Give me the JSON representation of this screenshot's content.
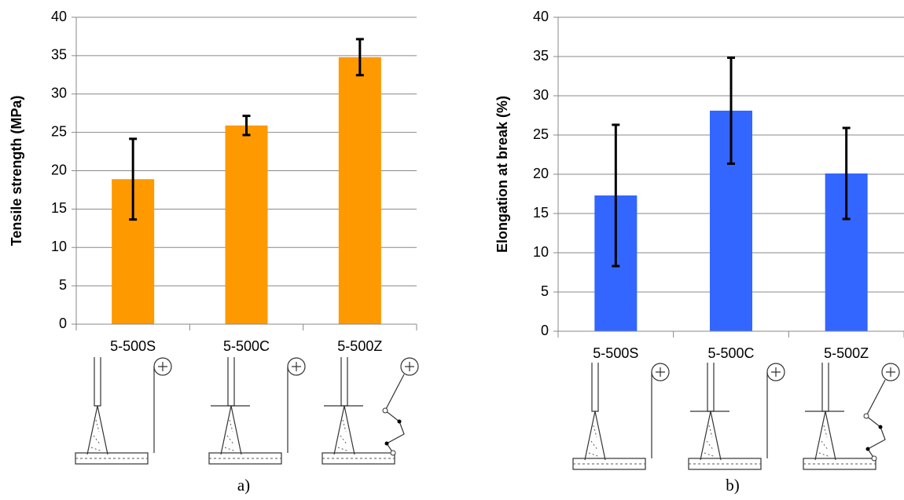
{
  "chart_data": [
    {
      "type": "bar",
      "y_label": "Tensile strength (MPa)",
      "caption": "a)",
      "categories": [
        "5-500S",
        "5-500C",
        "5-500Z"
      ],
      "values": [
        18.9,
        25.9,
        34.8
      ],
      "errors": [
        5.25,
        1.25,
        2.35
      ],
      "color": "#ff9900",
      "ylim": [
        0,
        40
      ],
      "yticks": [
        0,
        5,
        10,
        15,
        20,
        25,
        30,
        35,
        40
      ],
      "grid": true
    },
    {
      "type": "bar",
      "y_label": "Elongation at break (%)",
      "caption": "b)",
      "categories": [
        "5-500S",
        "5-500C",
        "5-500Z"
      ],
      "values": [
        17.3,
        28.1,
        20.1
      ],
      "errors": [
        9.0,
        6.75,
        5.8
      ],
      "color": "#3366ff",
      "ylim": [
        0,
        40
      ],
      "yticks": [
        0,
        5,
        10,
        15,
        20,
        25,
        30,
        35,
        40
      ],
      "grid": true
    }
  ]
}
